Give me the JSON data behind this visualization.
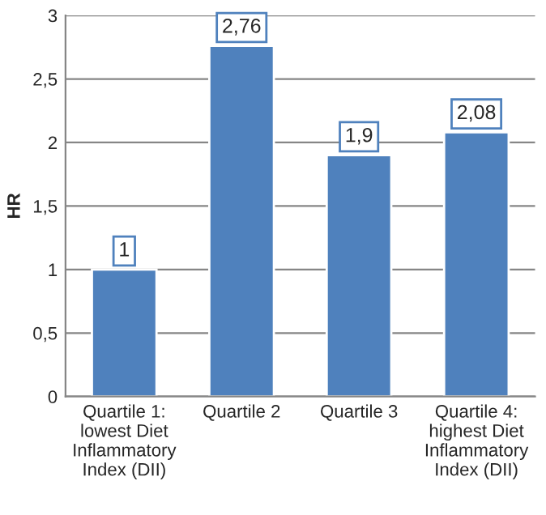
{
  "chart_data": {
    "type": "bar",
    "ylabel": "HR",
    "categories": [
      "Quartile 1:\nlowest Diet\nInflammatory\nIndex (DII)",
      "Quartile 2",
      "Quartile 3",
      "Quartile 4:\nhighest Diet\nInflammatory\nIndex (DII)"
    ],
    "values": [
      1,
      2.76,
      1.9,
      2.08
    ],
    "value_labels": [
      "1",
      "2,76",
      "1,9",
      "2,08"
    ],
    "color": "#4f81bd",
    "ylim": [
      0,
      3
    ],
    "yticks": [
      0,
      {
        "value": 0.5,
        "label": "0,5"
      },
      1,
      {
        "value": 1.5,
        "label": "1,5"
      },
      2,
      {
        "value": 2.5,
        "label": "2,5"
      },
      3
    ],
    "grid": "y",
    "legend": false
  }
}
